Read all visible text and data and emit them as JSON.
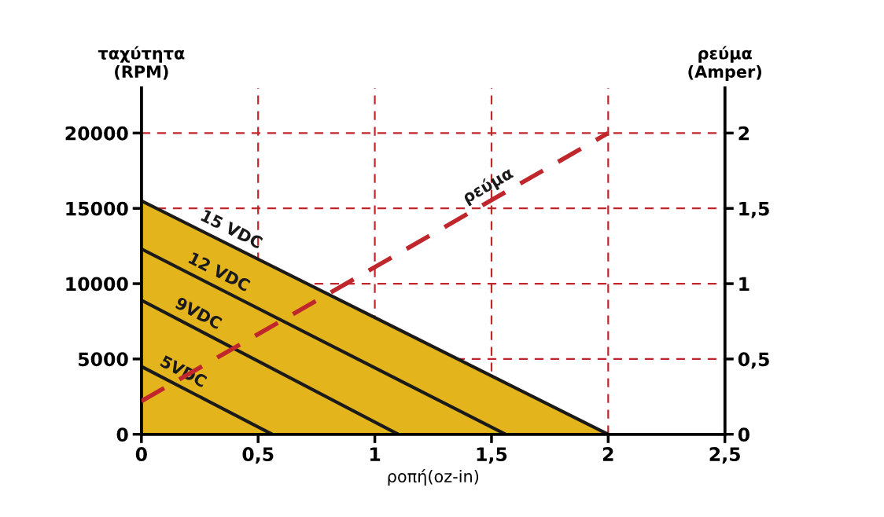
{
  "chart_data": {
    "type": "line",
    "xlabel": "ροπή(oz-in)",
    "ylabel": "ταχύτητα\n(RPM)",
    "y2label": "ρεύμα\n(Amper)",
    "xlim": [
      0,
      2.5
    ],
    "xticks": [
      0,
      {
        "value": 0.5,
        "label": "0,5"
      },
      1,
      {
        "value": 1.5,
        "label": "1,5"
      },
      2,
      {
        "value": 2.5,
        "label": "2,5"
      }
    ],
    "ylim": [
      0,
      23000
    ],
    "yticks": [
      0,
      5000,
      10000,
      15000,
      20000
    ],
    "y2lim": [
      0,
      2.3
    ],
    "y2ticks": [
      0,
      {
        "value": 0.5,
        "label": "0,5"
      },
      1,
      {
        "value": 1.5,
        "label": "1,5"
      },
      2
    ],
    "grid": true,
    "legend": false,
    "series": [
      {
        "name": "15 VDC",
        "type": "area",
        "color": "#e3b41c",
        "x": [
          0,
          2
        ],
        "values": [
          15500,
          0
        ]
      },
      {
        "name": "12 VDC",
        "color": "#1a1a1a",
        "x": [
          0,
          1.56
        ],
        "values": [
          12300,
          0
        ]
      },
      {
        "name": "9VDC",
        "color": "#1a1a1a",
        "x": [
          0,
          1.1
        ],
        "values": [
          8900,
          0
        ]
      },
      {
        "name": "5VDC",
        "color": "#1a1a1a",
        "x": [
          0,
          0.56
        ],
        "values": [
          4500,
          0
        ]
      },
      {
        "name": "ρεύμα",
        "axis": "y2",
        "line_style": "dashed",
        "color": "#c0272d",
        "x": [
          0,
          2
        ],
        "values": [
          0.22,
          2
        ]
      }
    ]
  }
}
